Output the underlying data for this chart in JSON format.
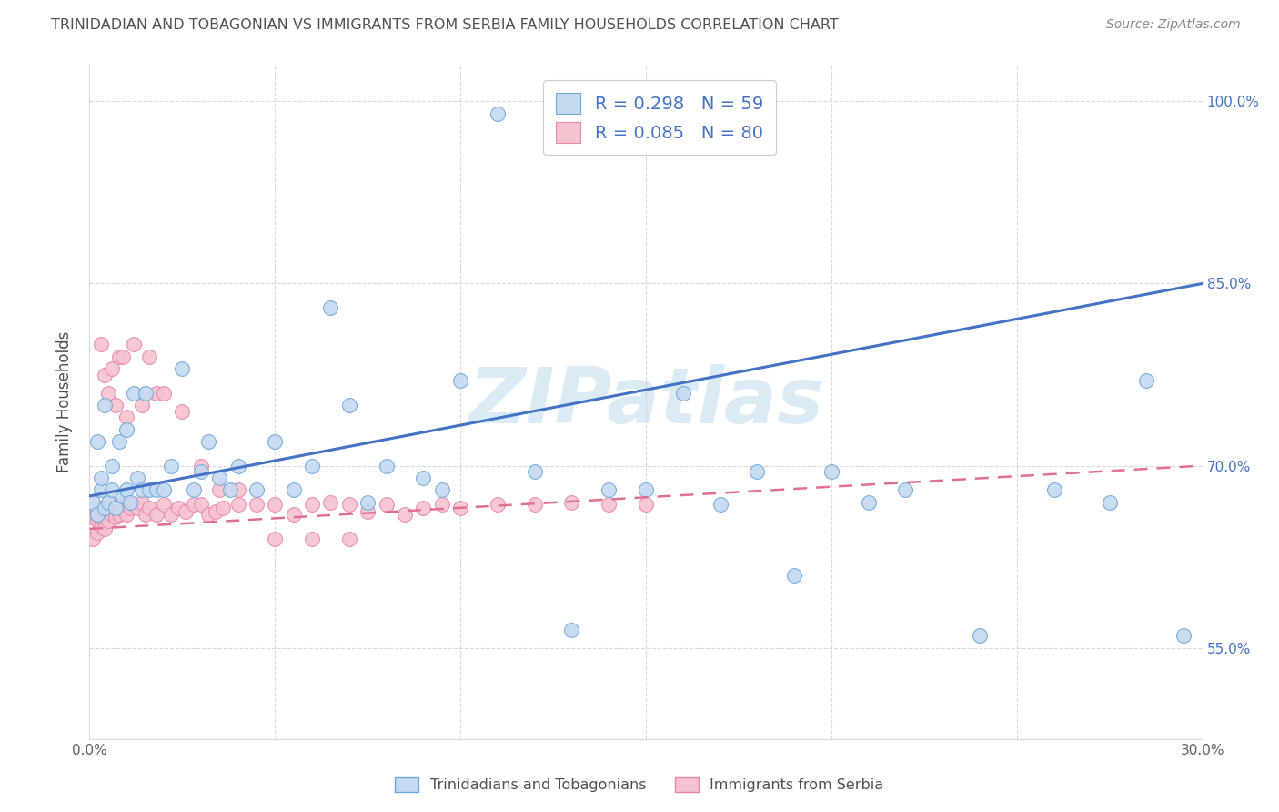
{
  "title": "TRINIDADIAN AND TOBAGONIAN VS IMMIGRANTS FROM SERBIA FAMILY HOUSEHOLDS CORRELATION CHART",
  "source": "Source: ZipAtlas.com",
  "ylabel": "Family Households",
  "x_min": 0.0,
  "x_max": 0.3,
  "y_min": 0.475,
  "y_max": 1.03,
  "yticks": [
    0.55,
    0.7,
    0.85,
    1.0
  ],
  "ytick_labels": [
    "55.0%",
    "70.0%",
    "85.0%",
    "100.0%"
  ],
  "xticks": [
    0.0,
    0.05,
    0.1,
    0.15,
    0.2,
    0.25,
    0.3
  ],
  "xtick_labels": [
    "0.0%",
    "",
    "",
    "",
    "",
    "",
    "30.0%"
  ],
  "series1_label": "Trinidadians and Tobagonians",
  "series1_color": "#c5d9f0",
  "series1_edge_color": "#6fa8d8",
  "series1_R": 0.298,
  "series1_N": 59,
  "series1_line_color": "#4472c4",
  "series2_label": "Immigrants from Serbia",
  "series2_color": "#f5c2d0",
  "series2_edge_color": "#e888a8",
  "series2_R": 0.085,
  "series2_N": 80,
  "series2_line_color": "#e07090",
  "background_color": "#ffffff",
  "watermark": "ZIPatlas",
  "legend_R_color": "#4472c4",
  "title_color": "#505050",
  "right_axis_color": "#4472c4",
  "grid_color": "#d8d8d8",
  "blue_line_y0": 0.675,
  "blue_line_y1": 0.85,
  "pink_line_y0": 0.648,
  "pink_line_y1": 0.7,
  "s1x": [
    0.001,
    0.002,
    0.002,
    0.003,
    0.003,
    0.004,
    0.004,
    0.005,
    0.006,
    0.006,
    0.007,
    0.008,
    0.009,
    0.01,
    0.01,
    0.011,
    0.012,
    0.013,
    0.014,
    0.015,
    0.016,
    0.018,
    0.02,
    0.022,
    0.025,
    0.028,
    0.03,
    0.032,
    0.035,
    0.038,
    0.04,
    0.045,
    0.05,
    0.055,
    0.06,
    0.065,
    0.07,
    0.075,
    0.08,
    0.09,
    0.095,
    0.1,
    0.11,
    0.12,
    0.13,
    0.14,
    0.15,
    0.16,
    0.17,
    0.18,
    0.19,
    0.2,
    0.21,
    0.22,
    0.24,
    0.26,
    0.275,
    0.285,
    0.295
  ],
  "s1y": [
    0.67,
    0.66,
    0.72,
    0.68,
    0.69,
    0.665,
    0.75,
    0.67,
    0.68,
    0.7,
    0.665,
    0.72,
    0.675,
    0.68,
    0.73,
    0.67,
    0.76,
    0.69,
    0.68,
    0.76,
    0.68,
    0.68,
    0.68,
    0.7,
    0.78,
    0.68,
    0.695,
    0.72,
    0.69,
    0.68,
    0.7,
    0.68,
    0.72,
    0.68,
    0.7,
    0.83,
    0.75,
    0.67,
    0.7,
    0.69,
    0.68,
    0.77,
    0.99,
    0.695,
    0.565,
    0.68,
    0.68,
    0.76,
    0.668,
    0.695,
    0.61,
    0.695,
    0.67,
    0.68,
    0.56,
    0.68,
    0.67,
    0.77,
    0.56
  ],
  "s2x": [
    0.001,
    0.001,
    0.001,
    0.002,
    0.002,
    0.002,
    0.002,
    0.003,
    0.003,
    0.003,
    0.003,
    0.004,
    0.004,
    0.004,
    0.005,
    0.005,
    0.005,
    0.006,
    0.006,
    0.007,
    0.007,
    0.008,
    0.008,
    0.009,
    0.01,
    0.01,
    0.011,
    0.012,
    0.013,
    0.014,
    0.015,
    0.016,
    0.018,
    0.02,
    0.022,
    0.024,
    0.026,
    0.028,
    0.03,
    0.032,
    0.034,
    0.036,
    0.04,
    0.045,
    0.05,
    0.055,
    0.06,
    0.065,
    0.07,
    0.075,
    0.08,
    0.085,
    0.09,
    0.095,
    0.1,
    0.11,
    0.12,
    0.13,
    0.14,
    0.15,
    0.003,
    0.004,
    0.005,
    0.006,
    0.007,
    0.008,
    0.009,
    0.01,
    0.012,
    0.014,
    0.016,
    0.018,
    0.02,
    0.025,
    0.03,
    0.035,
    0.04,
    0.05,
    0.06,
    0.07
  ],
  "s2y": [
    0.66,
    0.64,
    0.658,
    0.655,
    0.66,
    0.645,
    0.66,
    0.65,
    0.66,
    0.658,
    0.665,
    0.66,
    0.648,
    0.663,
    0.66,
    0.655,
    0.665,
    0.66,
    0.668,
    0.66,
    0.658,
    0.665,
    0.66,
    0.668,
    0.66,
    0.67,
    0.665,
    0.668,
    0.665,
    0.67,
    0.66,
    0.665,
    0.66,
    0.668,
    0.66,
    0.665,
    0.662,
    0.668,
    0.668,
    0.66,
    0.662,
    0.665,
    0.668,
    0.668,
    0.668,
    0.66,
    0.668,
    0.67,
    0.668,
    0.662,
    0.668,
    0.66,
    0.665,
    0.668,
    0.665,
    0.668,
    0.668,
    0.67,
    0.668,
    0.668,
    0.8,
    0.775,
    0.76,
    0.78,
    0.75,
    0.79,
    0.79,
    0.74,
    0.8,
    0.75,
    0.79,
    0.76,
    0.76,
    0.745,
    0.7,
    0.68,
    0.68,
    0.64,
    0.64,
    0.64
  ]
}
